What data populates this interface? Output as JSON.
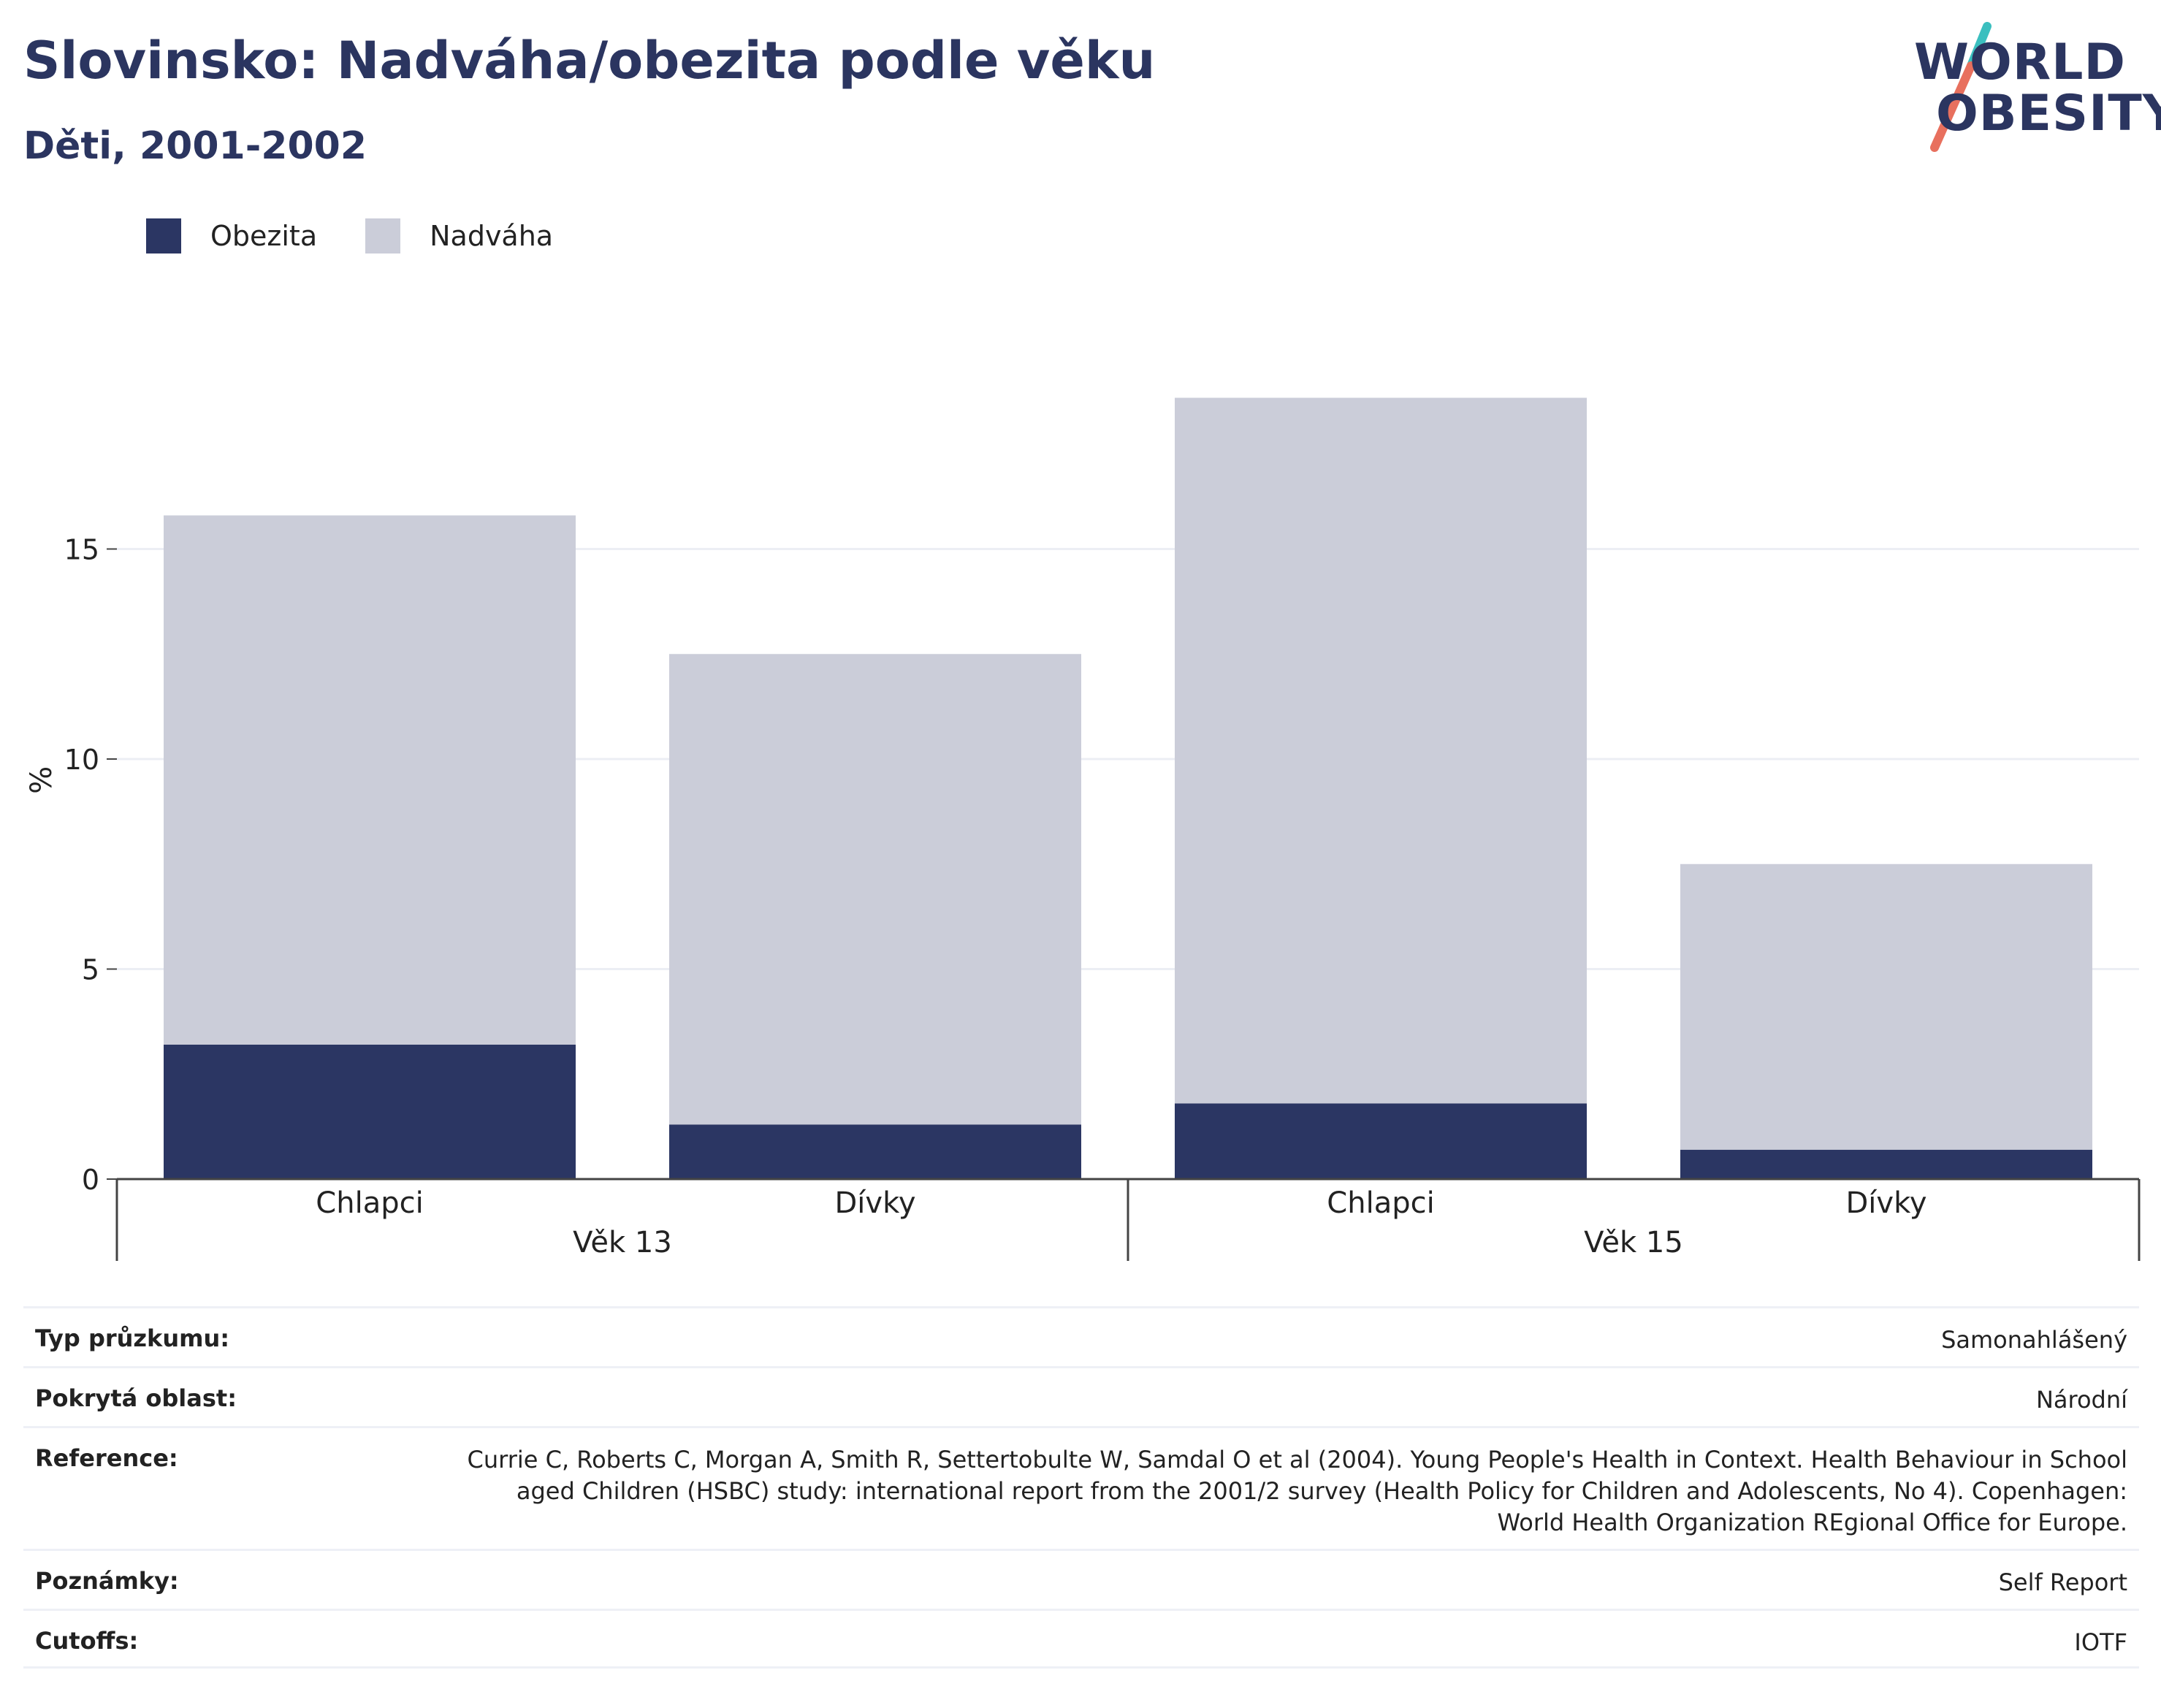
{
  "header": {
    "title": "Slovinsko: Nadváha/obezita podle věku",
    "subtitle": "Děti, 2001-2002"
  },
  "logo": {
    "line1": "WORLD",
    "line2": "OBESITY",
    "colors": {
      "navy": "#2b3560",
      "teal": "#3bbfbf",
      "coral": "#e8705e"
    }
  },
  "legend": [
    {
      "label": "Obezita",
      "color": "#2b3663"
    },
    {
      "label": "Nadváha",
      "color": "#cbcdd9"
    }
  ],
  "chart_data": {
    "type": "bar",
    "stacked": true,
    "ylabel": "%",
    "ylim": [
      0,
      19.5
    ],
    "yticks": [
      0,
      5,
      10,
      15
    ],
    "grid": true,
    "legend_position": "top-left",
    "groups": [
      {
        "label": "Věk 13",
        "categories": [
          "Chlapci",
          "Dívky"
        ]
      },
      {
        "label": "Věk 15",
        "categories": [
          "Chlapci",
          "Dívky"
        ]
      }
    ],
    "categories": [
      "Chlapci",
      "Dívky",
      "Chlapci",
      "Dívky"
    ],
    "series": [
      {
        "name": "Obezita",
        "color": "#2b3663",
        "values": [
          3.2,
          1.3,
          1.8,
          0.7
        ]
      },
      {
        "name": "Nadváha",
        "color": "#cbcdd9",
        "values": [
          12.6,
          11.2,
          16.8,
          6.8
        ]
      }
    ]
  },
  "meta": [
    {
      "key": "Typ průzkumu:",
      "value": "Samonahlášený"
    },
    {
      "key": "Pokrytá oblast:",
      "value": "Národní"
    },
    {
      "key": "Reference:",
      "value": "Currie C, Roberts C, Morgan A, Smith R, Settertobulte W, Samdal O et al (2004). Young People's Health in Context. Health Behaviour in School aged Children (HSBC) study: international report from the 2001/2 survey (Health Policy for Children and Adolescents, No 4). Copenhagen: World Health Organization REgional Office for Europe."
    },
    {
      "key": "Poznámky:",
      "value": "Self Report"
    },
    {
      "key": "Cutoffs:",
      "value": "IOTF"
    }
  ]
}
